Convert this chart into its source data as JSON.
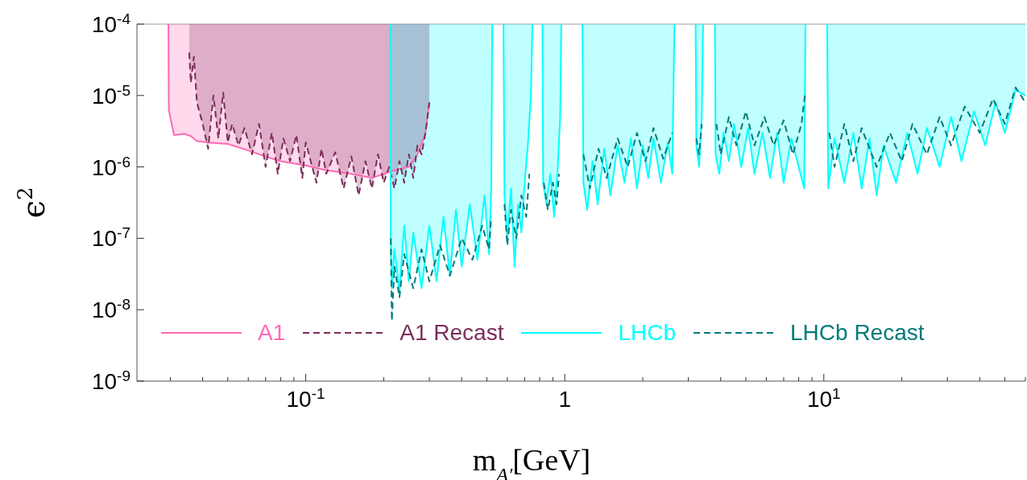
{
  "chart_data": {
    "type": "line",
    "xlabel": "m$_{A′}$[GeV]",
    "ylabel": "ϵ$^{2}$",
    "log": "xy",
    "legend": "bottom",
    "xlim": [
      0.0223,
      60
    ],
    "ylim": [
      1e-09,
      0.0001
    ],
    "xticks": [
      {
        "value": 0.03,
        "label": null
      },
      {
        "value": 0.04,
        "label": null
      },
      {
        "value": 0.05,
        "label": null
      },
      {
        "value": 0.06,
        "label": null
      },
      {
        "value": 0.07,
        "label": null
      },
      {
        "value": 0.08,
        "label": null
      },
      {
        "value": 0.09,
        "label": null
      },
      {
        "value": 0.1,
        "label": "10$^{-1}$"
      },
      {
        "value": 0.2,
        "label": null
      },
      {
        "value": 0.3,
        "label": null
      },
      {
        "value": 0.4,
        "label": null
      },
      {
        "value": 0.5,
        "label": null
      },
      {
        "value": 0.6,
        "label": null
      },
      {
        "value": 0.7,
        "label": null
      },
      {
        "value": 0.8,
        "label": null
      },
      {
        "value": 0.9,
        "label": null
      },
      1,
      {
        "value": 2,
        "label": null
      },
      {
        "value": 3,
        "label": null
      },
      {
        "value": 4,
        "label": null
      },
      {
        "value": 5,
        "label": null
      },
      {
        "value": 6,
        "label": null
      },
      {
        "value": 7,
        "label": null
      },
      {
        "value": 8,
        "label": null
      },
      {
        "value": 9,
        "label": null
      },
      {
        "value": 10,
        "label": "10$^{1}$"
      },
      {
        "value": 20,
        "label": null
      },
      {
        "value": 30,
        "label": null
      },
      {
        "value": 40,
        "label": null
      },
      {
        "value": 50,
        "label": null
      },
      {
        "value": 60,
        "label": null
      }
    ],
    "yticks": [
      {
        "value": 1e-09,
        "label": "10$^{-9}$"
      },
      {
        "value": 1e-08,
        "label": "10$^{-8}$"
      },
      {
        "value": 1e-07,
        "label": "10$^{-7}$"
      },
      {
        "value": 1e-06,
        "label": "10$^{-6}$"
      },
      {
        "value": 1e-05,
        "label": "10$^{-5}$"
      },
      {
        "value": 0.0001,
        "label": "10$^{-4}$"
      }
    ],
    "series": [
      {
        "name": "A1",
        "color": "#ff69b4",
        "line_style": "solid",
        "x": [
          0.0295,
          0.0296,
          0.031,
          0.034,
          0.036,
          0.038,
          0.042,
          0.05,
          0.06,
          0.07,
          0.08,
          0.1,
          0.12,
          0.15,
          0.18,
          0.2,
          0.22,
          0.25,
          0.27,
          0.29,
          0.3
        ],
        "values": [
          0.0001,
          6.3e-06,
          2.8e-06,
          2.9e-06,
          2.7e-06,
          2.3e-06,
          2.2e-06,
          2.1e-06,
          1.7e-06,
          1.4e-06,
          1.2e-06,
          1.05e-06,
          9e-07,
          8e-07,
          7e-07,
          8e-07,
          9e-07,
          1e-06,
          1.5e-06,
          3e-06,
          8e-06
        ],
        "lower": [
          0.0001,
          6.3e-06,
          2.8e-06,
          2.9e-06,
          2.7e-06,
          2.3e-06,
          2.2e-06,
          2.1e-06,
          1.7e-06,
          1.4e-06,
          1.2e-06,
          1.05e-06,
          9e-07,
          8e-07,
          7e-07,
          8e-07,
          9e-07,
          1e-06,
          1.5e-06,
          3e-06,
          8e-06
        ],
        "upper": [
          0.0001,
          0.0001,
          0.0001,
          0.0001,
          0.0001,
          0.0001,
          0.0001,
          0.0001,
          0.0001,
          0.0001,
          0.0001,
          0.0001,
          0.0001,
          0.0001,
          0.0001,
          0.0001,
          0.0001,
          0.0001,
          0.0001,
          0.0001,
          0.0001
        ]
      },
      {
        "name": "A1 Recast",
        "color": "#7b2d5b",
        "line_style": "dashed",
        "x": [
          0.0355,
          0.036,
          0.037,
          0.038,
          0.04,
          0.042,
          0.044,
          0.046,
          0.048,
          0.05,
          0.052,
          0.055,
          0.058,
          0.062,
          0.066,
          0.07,
          0.074,
          0.078,
          0.082,
          0.087,
          0.092,
          0.097,
          0.1,
          0.11,
          0.115,
          0.12,
          0.13,
          0.14,
          0.15,
          0.16,
          0.17,
          0.18,
          0.19,
          0.2,
          0.21,
          0.22,
          0.23,
          0.24,
          0.25,
          0.26,
          0.27,
          0.28,
          0.29,
          0.3
        ],
        "values": [
          4e-05,
          1.5e-05,
          3.5e-05,
          8e-06,
          4e-06,
          1.8e-06,
          1e-05,
          2.5e-06,
          1.1e-05,
          2.2e-06,
          4e-06,
          2e-06,
          3.5e-06,
          1.5e-06,
          4e-06,
          1e-06,
          3e-06,
          8e-07,
          2.5e-06,
          1.2e-06,
          2.8e-06,
          7e-07,
          2.2e-06,
          6e-07,
          1.8e-06,
          8e-07,
          1.6e-06,
          5e-07,
          1.4e-06,
          4e-07,
          1.2e-06,
          5e-07,
          1.5e-06,
          6e-07,
          1e-06,
          5e-07,
          1.2e-06,
          6e-07,
          1.5e-06,
          7e-07,
          2e-06,
          1.5e-06,
          3e-06,
          8e-06
        ],
        "lower": [
          4e-05,
          1.5e-05,
          3.5e-05,
          8e-06,
          4e-06,
          1.8e-06,
          1e-05,
          2.5e-06,
          1.1e-05,
          2.2e-06,
          4e-06,
          2e-06,
          3.5e-06,
          1.5e-06,
          4e-06,
          1e-06,
          3e-06,
          8e-07,
          2.5e-06,
          1.2e-06,
          2.8e-06,
          7e-07,
          2.2e-06,
          6e-07,
          1.8e-06,
          8e-07,
          1.6e-06,
          5e-07,
          1.4e-06,
          4e-07,
          1.2e-06,
          5e-07,
          1.5e-06,
          6e-07,
          1e-06,
          5e-07,
          1.2e-06,
          6e-07,
          1.5e-06,
          7e-07,
          2e-06,
          1.5e-06,
          3e-06,
          8e-06
        ],
        "upper": [
          0.0001,
          0.0001,
          0.0001,
          0.0001,
          0.0001,
          0.0001,
          0.0001,
          0.0001,
          0.0001,
          0.0001,
          0.0001,
          0.0001,
          0.0001,
          0.0001,
          0.0001,
          0.0001,
          0.0001,
          0.0001,
          0.0001,
          0.0001,
          0.0001,
          0.0001,
          0.0001,
          0.0001,
          0.0001,
          0.0001,
          0.0001,
          0.0001,
          0.0001,
          0.0001,
          0.0001,
          0.0001,
          0.0001,
          0.0001,
          0.0001,
          0.0001,
          0.0001,
          0.0001,
          0.0001,
          0.0001,
          0.0001,
          0.0001,
          0.0001,
          0.0001
        ]
      },
      {
        "name": "LHCb",
        "color": "#00ffff",
        "line_style": "solid",
        "x": [
          0.212,
          0.213,
          0.215,
          0.22,
          0.23,
          0.24,
          0.25,
          0.26,
          0.28,
          0.3,
          0.32,
          0.34,
          0.36,
          0.38,
          0.4,
          0.43,
          0.46,
          0.49,
          0.51,
          0.52,
          0.525,
          0.55,
          0.58,
          0.585,
          0.6,
          0.62,
          0.64,
          0.66,
          0.68,
          0.7,
          0.72,
          0.74,
          0.75,
          0.78,
          0.82,
          0.825,
          0.85,
          0.88,
          0.91,
          0.94,
          0.96,
          0.97,
          1.05,
          1.17,
          1.18,
          1.22,
          1.28,
          1.34,
          1.42,
          1.5,
          1.6,
          1.7,
          1.8,
          1.9,
          2.0,
          2.1,
          2.2,
          2.35,
          2.5,
          2.6,
          2.65,
          3.0,
          3.2,
          3.22,
          3.3,
          3.38,
          3.42,
          3.6,
          3.8,
          3.82,
          3.95,
          4.1,
          4.3,
          4.5,
          4.8,
          5.1,
          5.4,
          5.8,
          6.2,
          6.6,
          7.0,
          7.5,
          8.0,
          8.4,
          8.5,
          9.5,
          10.3,
          10.4,
          11,
          12,
          13,
          14,
          15,
          16,
          17,
          19,
          21,
          23,
          25,
          28,
          31,
          34,
          38,
          42,
          46,
          50,
          55,
          60
        ],
        "values": [
          0.0001,
          1e-07,
          2e-08,
          7e-08,
          1.8e-08,
          1.5e-07,
          2.5e-08,
          1.2e-07,
          2e-08,
          1.5e-07,
          2.5e-08,
          2e-07,
          3e-08,
          2.5e-07,
          4e-08,
          3e-07,
          5e-08,
          4e-07,
          6e-08,
          5e-07,
          0.0001,
          null,
          0.0001,
          4e-07,
          1e-07,
          5e-07,
          4e-08,
          3e-07,
          1.2e-07,
          6e-07,
          2e-06,
          1e-05,
          0.0001,
          null,
          0.0001,
          6e-07,
          3e-07,
          8e-07,
          2e-07,
          1e-06,
          5e-06,
          0.0001,
          null,
          0.0001,
          6e-07,
          2.5e-07,
          1.2e-06,
          3e-07,
          1.8e-06,
          4e-07,
          2e-06,
          6e-07,
          2.5e-06,
          5e-07,
          2e-06,
          7e-07,
          2.5e-06,
          6e-07,
          2.2e-06,
          8e-07,
          0.0001,
          null,
          0.0001,
          2e-06,
          1e-06,
          5e-06,
          0.0001,
          null,
          0.0001,
          1.5e-06,
          8e-07,
          3e-06,
          1.2e-06,
          4e-06,
          1e-06,
          3.5e-06,
          8e-07,
          3e-06,
          7e-07,
          3e-06,
          6e-07,
          2.5e-06,
          1e-06,
          5e-07,
          0.0001,
          null,
          0.0001,
          5e-07,
          2.5e-06,
          6e-07,
          3e-06,
          5e-07,
          2.5e-06,
          4e-07,
          2e-06,
          6e-07,
          3e-06,
          8e-07,
          3.5e-06,
          1e-06,
          5e-06,
          1.2e-06,
          6e-06,
          2e-06,
          8e-06,
          3e-06,
          1.2e-05,
          1e-05
        ],
        "lower": [
          0.0001,
          1e-07,
          2e-08,
          7e-08,
          1.8e-08,
          1.5e-07,
          2.5e-08,
          1.2e-07,
          2e-08,
          1.5e-07,
          2.5e-08,
          2e-07,
          3e-08,
          2.5e-07,
          4e-08,
          3e-07,
          5e-08,
          4e-07,
          6e-08,
          5e-07,
          0.0001,
          null,
          0.0001,
          4e-07,
          1e-07,
          5e-07,
          4e-08,
          3e-07,
          1.2e-07,
          6e-07,
          2e-06,
          1e-05,
          0.0001,
          null,
          0.0001,
          6e-07,
          3e-07,
          8e-07,
          2e-07,
          1e-06,
          5e-06,
          0.0001,
          null,
          0.0001,
          6e-07,
          2.5e-07,
          1.2e-06,
          3e-07,
          1.8e-06,
          4e-07,
          2e-06,
          6e-07,
          2.5e-06,
          5e-07,
          2e-06,
          7e-07,
          2.5e-06,
          6e-07,
          2.2e-06,
          8e-07,
          0.0001,
          null,
          0.0001,
          2e-06,
          1e-06,
          5e-06,
          0.0001,
          null,
          0.0001,
          1.5e-06,
          8e-07,
          3e-06,
          1.2e-06,
          4e-06,
          1e-06,
          3.5e-06,
          8e-07,
          3e-06,
          7e-07,
          3e-06,
          6e-07,
          2.5e-06,
          1e-06,
          5e-07,
          0.0001,
          null,
          0.0001,
          5e-07,
          2.5e-06,
          6e-07,
          3e-06,
          5e-07,
          2.5e-06,
          4e-07,
          2e-06,
          6e-07,
          3e-06,
          8e-07,
          3.5e-06,
          1e-06,
          5e-06,
          1.2e-06,
          6e-06,
          2e-06,
          8e-06,
          3e-06,
          1.2e-05,
          1e-05
        ],
        "upper": [
          0.0001,
          0.0001,
          0.0001,
          0.0001,
          0.0001,
          0.0001,
          0.0001,
          0.0001,
          0.0001,
          0.0001,
          0.0001,
          0.0001,
          0.0001,
          0.0001,
          0.0001,
          0.0001,
          0.0001,
          0.0001,
          0.0001,
          0.0001,
          0.0001,
          null,
          0.0001,
          0.0001,
          0.0001,
          0.0001,
          0.0001,
          0.0001,
          0.0001,
          0.0001,
          0.0001,
          0.0001,
          0.0001,
          null,
          0.0001,
          0.0001,
          0.0001,
          0.0001,
          0.0001,
          0.0001,
          0.0001,
          0.0001,
          null,
          0.0001,
          0.0001,
          0.0001,
          0.0001,
          0.0001,
          0.0001,
          0.0001,
          0.0001,
          0.0001,
          0.0001,
          0.0001,
          0.0001,
          0.0001,
          0.0001,
          0.0001,
          0.0001,
          0.0001,
          0.0001,
          null,
          0.0001,
          0.0001,
          0.0001,
          0.0001,
          0.0001,
          null,
          0.0001,
          0.0001,
          0.0001,
          0.0001,
          0.0001,
          0.0001,
          0.0001,
          0.0001,
          0.0001,
          0.0001,
          0.0001,
          0.0001,
          0.0001,
          0.0001,
          0.0001,
          0.0001,
          0.0001,
          null,
          0.0001,
          0.0001,
          0.0001,
          0.0001,
          0.0001,
          0.0001,
          0.0001,
          0.0001,
          0.0001,
          0.0001,
          0.0001,
          0.0001,
          0.0001,
          0.0001,
          0.0001,
          0.0001,
          0.0001,
          0.0001,
          0.0001,
          0.0001,
          0.0001,
          0.0001
        ]
      },
      {
        "name": "LHCb Recast",
        "color": "#007a7a",
        "line_style": "dashed",
        "x": [
          0.213,
          0.215,
          0.22,
          0.23,
          0.24,
          0.26,
          0.28,
          0.3,
          0.33,
          0.36,
          0.4,
          0.44,
          0.48,
          0.51,
          0.52,
          0.55,
          0.585,
          0.6,
          0.62,
          0.65,
          0.68,
          0.71,
          0.73,
          0.78,
          0.83,
          0.86,
          0.9,
          0.93,
          0.95,
          1.05,
          1.18,
          1.25,
          1.35,
          1.45,
          1.6,
          1.75,
          1.9,
          2.05,
          2.2,
          2.4,
          2.6,
          3.0,
          3.22,
          3.3,
          3.38,
          3.6,
          3.85,
          4.0,
          4.3,
          4.6,
          5.0,
          5.4,
          5.9,
          6.4,
          7.0,
          7.6,
          8.2,
          8.45,
          9.5,
          10.5,
          11,
          12,
          13,
          14,
          16,
          18,
          20,
          22,
          25,
          28,
          31,
          35,
          40,
          45,
          50,
          55,
          60
        ],
        "values": [
          1e-07,
          7e-09,
          4e-08,
          1.5e-08,
          6e-08,
          2e-08,
          7e-08,
          2.5e-08,
          8e-08,
          3e-08,
          1e-07,
          5e-08,
          1.5e-07,
          7e-08,
          2e-07,
          null,
          3e-07,
          8e-08,
          2.5e-07,
          1e-07,
          4e-07,
          2e-07,
          8e-07,
          null,
          6e-07,
          2.5e-07,
          6e-07,
          3e-07,
          8e-07,
          null,
          1.5e-06,
          5e-07,
          1.8e-06,
          7e-07,
          2.5e-06,
          1e-06,
          3e-06,
          1.2e-06,
          3.5e-06,
          1.3e-06,
          3e-06,
          null,
          2.5e-06,
          1.5e-06,
          4e-06,
          null,
          4e-06,
          1.5e-06,
          5e-06,
          2e-06,
          6e-06,
          2e-06,
          5e-06,
          2e-06,
          4.5e-06,
          1.5e-06,
          4e-06,
          1e-05,
          null,
          3e-06,
          1e-06,
          4e-06,
          1.2e-06,
          3.5e-06,
          1e-06,
          3e-06,
          1.2e-06,
          4e-06,
          1.5e-06,
          5e-06,
          2e-06,
          7e-06,
          3e-06,
          9e-06,
          4e-06,
          1.3e-05,
          8e-06
        ]
      }
    ]
  }
}
